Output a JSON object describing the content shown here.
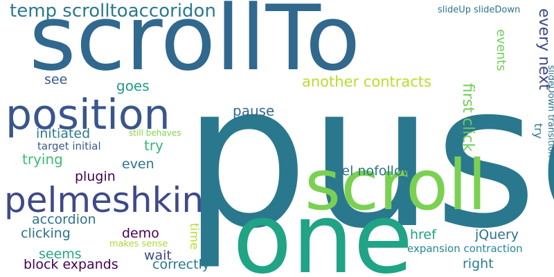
{
  "words": [
    {
      "text": "puse",
      "color": "#2a788e",
      "vertical": false
    },
    {
      "text": "scrollTo",
      "color": "#31688e",
      "vertical": false
    },
    {
      "text": "one",
      "color": "#21a386",
      "vertical": false
    },
    {
      "text": "scroll",
      "color": "#7ad151",
      "vertical": false
    },
    {
      "text": "position",
      "color": "#39568c",
      "vertical": false
    },
    {
      "text": "pelmeshkin",
      "color": "#3e4989",
      "vertical": false
    },
    {
      "text": "temp scrolltoaccoridon",
      "color": "#2a788e",
      "vertical": false
    },
    {
      "text": "first click",
      "color": "#6ece58",
      "vertical": true
    },
    {
      "text": "every next",
      "color": "#3e4989",
      "vertical": true
    },
    {
      "text": "another contracts",
      "color": "#b5de2b",
      "vertical": false
    },
    {
      "text": "events",
      "color": "#6ece58",
      "vertical": true
    },
    {
      "text": "slideDown transition",
      "color": "#2c728e",
      "vertical": true
    },
    {
      "text": "slideUp slideDown",
      "color": "#2c728e",
      "vertical": false
    },
    {
      "text": "see",
      "color": "#38598c",
      "vertical": false
    },
    {
      "text": "goes",
      "color": "#1e9b8a",
      "vertical": false
    },
    {
      "text": "pause",
      "color": "#31688e",
      "vertical": false
    },
    {
      "text": "initiated",
      "color": "#2a788e",
      "vertical": false
    },
    {
      "text": "still behaves",
      "color": "#86d549",
      "vertical": false
    },
    {
      "text": "target initial",
      "color": "#38598c",
      "vertical": false
    },
    {
      "text": "try",
      "color": "#35b779",
      "vertical": false
    },
    {
      "text": "trying",
      "color": "#3dbc74",
      "vertical": false
    },
    {
      "text": "even",
      "color": "#2c728e",
      "vertical": false
    },
    {
      "text": "try",
      "color": "#2c728e",
      "vertical": true
    },
    {
      "text": "plugin",
      "color": "#440154",
      "vertical": false
    },
    {
      "text": "rel nofollow",
      "color": "#2c728e",
      "vertical": false
    },
    {
      "text": "accordion",
      "color": "#2c728e",
      "vertical": false
    },
    {
      "text": "clicking",
      "color": "#2d708e",
      "vertical": false
    },
    {
      "text": "demo",
      "color": "#440154",
      "vertical": false
    },
    {
      "text": "time",
      "color": "#b5de2b",
      "vertical": true
    },
    {
      "text": "href",
      "color": "#1fa088",
      "vertical": false
    },
    {
      "text": "jQuery",
      "color": "#2c728e",
      "vertical": false
    },
    {
      "text": "seems",
      "color": "#22a785",
      "vertical": false
    },
    {
      "text": "makes sense",
      "color": "#a5db36",
      "vertical": false
    },
    {
      "text": "wait",
      "color": "#3e4989",
      "vertical": false
    },
    {
      "text": "expansion contraction",
      "color": "#23888e",
      "vertical": false
    },
    {
      "text": "block expands",
      "color": "#440154",
      "vertical": false
    },
    {
      "text": "correctly",
      "color": "#2a788e",
      "vertical": false
    },
    {
      "text": "right",
      "color": "#287d8e",
      "vertical": false
    }
  ]
}
